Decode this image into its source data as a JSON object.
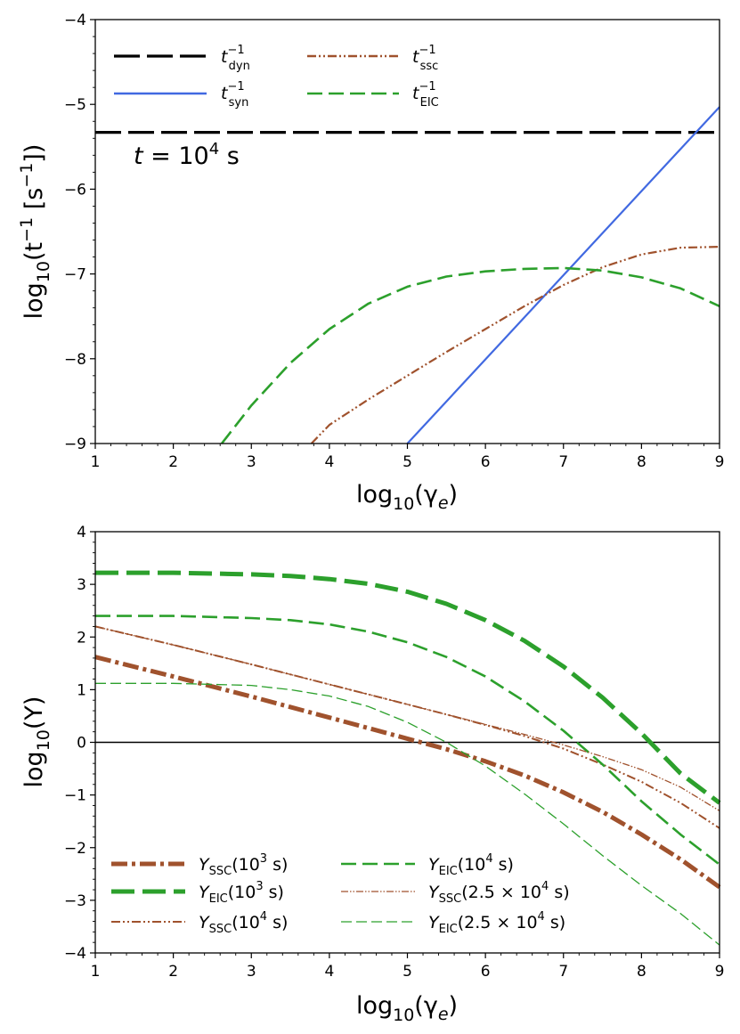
{
  "chart_data": [
    {
      "type": "line",
      "xlabel": "log10(γe)",
      "ylabel": "log10(t⁻¹ [s⁻¹])",
      "xlim": [
        1,
        9
      ],
      "ylim": [
        -9,
        -4
      ],
      "xticks": [
        "1",
        "2",
        "3",
        "4",
        "5",
        "6",
        "7",
        "8",
        "9"
      ],
      "yticks": [
        "−9",
        "−8",
        "−7",
        "−6",
        "−5",
        "−4"
      ],
      "annotation": "t = 10^4 s",
      "legend_position": "upper-left",
      "series": [
        {
          "name": "t_dyn^-1",
          "color": "#000000",
          "style": "long-dash",
          "x": [
            1,
            9
          ],
          "y": [
            -5.33,
            -5.33
          ]
        },
        {
          "name": "t_syn^-1",
          "color": "#4169e1",
          "style": "solid",
          "x": [
            5.0,
            9.0
          ],
          "y": [
            -9.0,
            -5.03
          ]
        },
        {
          "name": "t_ssc^-1",
          "color": "#a0522d",
          "style": "dash-dot-dot",
          "x": [
            3.77,
            4,
            4.5,
            5,
            5.5,
            6,
            6.5,
            7,
            7.5,
            8,
            8.5,
            9
          ],
          "y": [
            -9.0,
            -8.78,
            -8.48,
            -8.2,
            -7.92,
            -7.65,
            -7.38,
            -7.13,
            -6.92,
            -6.77,
            -6.69,
            -6.68
          ]
        },
        {
          "name": "t_EIC^-1",
          "color": "#2ca02c",
          "style": "dashed",
          "x": [
            2.62,
            3,
            3.5,
            4,
            4.5,
            5,
            5.5,
            6,
            6.5,
            7,
            7.5,
            8,
            8.5,
            9
          ],
          "y": [
            -9.0,
            -8.55,
            -8.05,
            -7.65,
            -7.35,
            -7.15,
            -7.03,
            -6.97,
            -6.94,
            -6.93,
            -6.96,
            -7.04,
            -7.17,
            -7.38
          ]
        }
      ]
    },
    {
      "type": "line",
      "xlabel": "log10(γe)",
      "ylabel": "log10(Y)",
      "xlim": [
        1,
        9
      ],
      "ylim": [
        -4,
        4
      ],
      "xticks": [
        "1",
        "2",
        "3",
        "4",
        "5",
        "6",
        "7",
        "8",
        "9"
      ],
      "yticks": [
        "−4",
        "−3",
        "−2",
        "−1",
        "0",
        "1",
        "2",
        "3",
        "4"
      ],
      "reference_line_y": 0,
      "legend_position": "lower-left",
      "series": [
        {
          "name": "Y_SSC(10^3 s)",
          "color": "#a0522d",
          "style": "dash-dot",
          "weight": "thick",
          "x": [
            1,
            2,
            3,
            4,
            5,
            5.5,
            6,
            6.5,
            7,
            7.5,
            8,
            8.5,
            9
          ],
          "y": [
            1.62,
            1.25,
            0.87,
            0.47,
            0.07,
            -0.13,
            -0.36,
            -0.63,
            -0.95,
            -1.32,
            -1.75,
            -2.22,
            -2.75
          ]
        },
        {
          "name": "Y_EIC(10^3 s)",
          "color": "#2ca02c",
          "style": "dashed",
          "weight": "thick",
          "x": [
            1,
            2,
            3,
            3.5,
            4,
            4.5,
            5,
            5.5,
            6,
            6.5,
            7,
            7.5,
            8,
            8.5,
            9
          ],
          "y": [
            3.22,
            3.22,
            3.19,
            3.16,
            3.1,
            3.01,
            2.86,
            2.63,
            2.32,
            1.93,
            1.44,
            0.85,
            0.17,
            -0.59,
            -1.15
          ]
        },
        {
          "name": "Y_SSC(10^4 s)",
          "color": "#a0522d",
          "style": "dash-dot-dot",
          "weight": "medium",
          "x": [
            1,
            2,
            3,
            4,
            5,
            5.5,
            6,
            6.5,
            7,
            7.5,
            8,
            8.5,
            9
          ],
          "y": [
            2.2,
            1.85,
            1.48,
            1.1,
            0.72,
            0.53,
            0.33,
            0.12,
            -0.12,
            -0.42,
            -0.75,
            -1.15,
            -1.63
          ]
        },
        {
          "name": "Y_EIC(10^4 s)",
          "color": "#2ca02c",
          "style": "dashed",
          "weight": "medium",
          "x": [
            1,
            2,
            3,
            3.5,
            4,
            4.5,
            5,
            5.5,
            6,
            6.5,
            7,
            7.5,
            8,
            8.5,
            9
          ],
          "y": [
            2.4,
            2.4,
            2.36,
            2.32,
            2.24,
            2.1,
            1.9,
            1.62,
            1.25,
            0.78,
            0.22,
            -0.42,
            -1.12,
            -1.75,
            -2.32
          ]
        },
        {
          "name": "Y_SSC(2.5×10^4 s)",
          "color": "#a0522d",
          "style": "dash-dot-dot",
          "weight": "thin",
          "x": [
            1,
            2,
            3,
            4,
            5,
            5.5,
            6,
            6.5,
            7,
            7.5,
            8,
            8.5,
            9
          ],
          "y": [
            2.2,
            1.85,
            1.48,
            1.1,
            0.72,
            0.53,
            0.34,
            0.15,
            -0.05,
            -0.27,
            -0.52,
            -0.85,
            -1.3
          ]
        },
        {
          "name": "Y_EIC(2.5×10^4 s)",
          "color": "#2ca02c",
          "style": "dashed",
          "weight": "thin",
          "x": [
            1,
            2,
            3,
            3.5,
            4,
            4.5,
            5,
            5.5,
            6,
            6.5,
            7,
            7.5,
            8,
            8.5,
            9
          ],
          "y": [
            1.12,
            1.12,
            1.08,
            1.0,
            0.88,
            0.68,
            0.38,
            0.0,
            -0.45,
            -0.98,
            -1.55,
            -2.15,
            -2.72,
            -3.25,
            -3.85
          ]
        }
      ]
    }
  ],
  "legend_top": {
    "dyn": {
      "base": "t",
      "sup": "−1",
      "sub": "dyn"
    },
    "syn": {
      "base": "t",
      "sup": "−1",
      "sub": "syn"
    },
    "ssc": {
      "base": "t",
      "sup": "−1",
      "sub": "ssc"
    },
    "eic": {
      "base": "t",
      "sup": "−1",
      "sub": "EIC"
    }
  },
  "annotation_top": {
    "prefix": "t",
    "eq": " = 10",
    "sup": "4",
    "unit": " s"
  },
  "top_ylabel": {
    "pre": "log",
    "sub": "10",
    "mid": "(t",
    "sup1": "−1",
    "mid2": " [s",
    "sup2": "−1",
    "end": "])"
  },
  "xlabel": {
    "pre": "log",
    "sub": "10",
    "mid": "(γ",
    "sub2": "e",
    "end": ")"
  },
  "bottom_ylabel": {
    "pre": "log",
    "sub": "10",
    "mid": "(Y",
    "end": ")"
  },
  "legend_bottom": {
    "ssc1e3": {
      "Y": "Y",
      "sub": "SSC",
      "pre": "(10",
      "sup": "3",
      "post": " s)"
    },
    "eic1e3": {
      "Y": "Y",
      "sub": "EIC",
      "pre": "(10",
      "sup": "3",
      "post": " s)"
    },
    "ssc1e4": {
      "Y": "Y",
      "sub": "SSC",
      "pre": "(10",
      "sup": "4",
      "post": " s)"
    },
    "eic1e4": {
      "Y": "Y",
      "sub": "EIC",
      "pre": "(10",
      "sup": "4",
      "post": " s)"
    },
    "ssc25e4": {
      "Y": "Y",
      "sub": "SSC",
      "pre": "(2.5 × 10",
      "sup": "4",
      "post": " s)"
    },
    "eic25e4": {
      "Y": "Y",
      "sub": "EIC",
      "pre": "(2.5 × 10",
      "sup": "4",
      "post": " s)"
    }
  }
}
